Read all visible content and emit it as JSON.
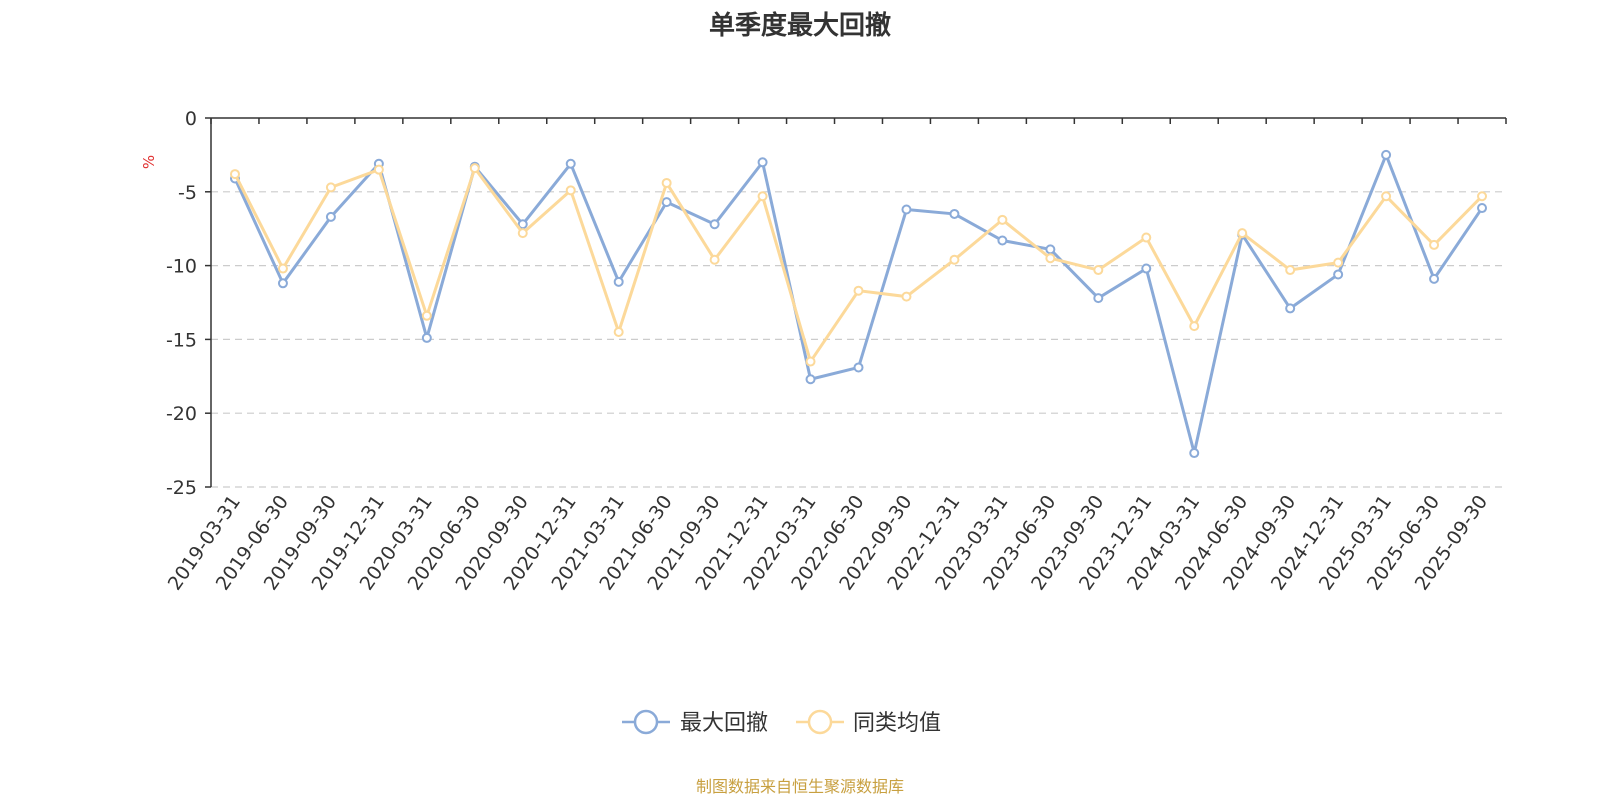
{
  "chart_data": {
    "type": "line",
    "title": "单季度最大回撤",
    "ylabel": "%",
    "ylim": [
      -25,
      0
    ],
    "yticks": [
      0,
      -5,
      -10,
      -15,
      -20,
      -25
    ],
    "grid": true,
    "legend_position": "bottom",
    "categories": [
      "2019-03-31",
      "2019-06-30",
      "2019-09-30",
      "2019-12-31",
      "2020-03-31",
      "2020-06-30",
      "2020-09-30",
      "2020-12-31",
      "2021-03-31",
      "2021-06-30",
      "2021-09-30",
      "2021-12-31",
      "2022-03-31",
      "2022-06-30",
      "2022-09-30",
      "2022-12-31",
      "2023-03-31",
      "2023-06-30",
      "2023-09-30",
      "2023-12-31",
      "2024-03-31",
      "2024-06-30",
      "2024-09-30",
      "2024-12-31",
      "2025-03-31",
      "2025-06-30",
      "2025-09-30"
    ],
    "series": [
      {
        "name": "最大回撤",
        "color": "#8aaad8",
        "values": [
          -4.1,
          -11.2,
          -6.7,
          -3.1,
          -14.9,
          -3.3,
          -7.2,
          -3.1,
          -11.1,
          -5.7,
          -7.2,
          -3.0,
          -17.7,
          -16.9,
          -6.2,
          -6.5,
          -8.3,
          -8.9,
          -12.2,
          -10.2,
          -22.7,
          -7.9,
          -12.9,
          -10.6,
          -2.5,
          -10.9,
          -6.1
        ]
      },
      {
        "name": "同类均值",
        "color": "#fcd99a",
        "values": [
          -3.8,
          -10.2,
          -4.7,
          -3.5,
          -13.4,
          -3.4,
          -7.8,
          -4.9,
          -14.5,
          -4.4,
          -9.6,
          -5.3,
          -16.5,
          -11.7,
          -12.1,
          -9.6,
          -6.9,
          -9.5,
          -10.3,
          -8.1,
          -14.1,
          -7.8,
          -10.3,
          -9.8,
          -5.3,
          -8.6,
          -5.3
        ]
      }
    ]
  },
  "footer": {
    "source": "制图数据来自恒生聚源数据库"
  }
}
